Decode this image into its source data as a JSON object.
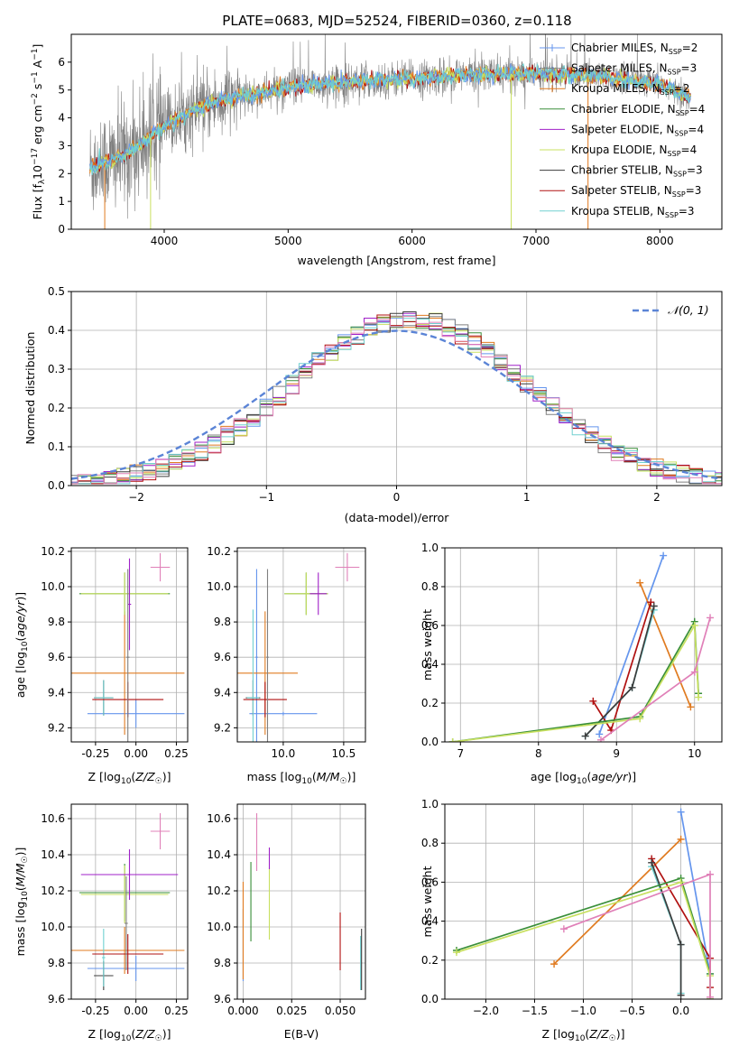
{
  "figure": {
    "title": "PLATE=0683, MJD=52524, FIBERID=0360, z=0.118"
  },
  "colors": {
    "Chabrier MILES": "#6495ed",
    "Salpeter MILES": "#808080",
    "Kroupa MILES": "#e07b20",
    "Chabrier ELODIE": "#3a8f3a",
    "Salpeter ELODIE": "#a020c8",
    "Kroupa ELODIE": "#c8e060",
    "Chabrier STELIB": "#3c3c3c",
    "Salpeter STELIB": "#b01010",
    "Kroupa STELIB": "#70d0d0",
    "extra": "#e080b8"
  },
  "chart_data": [
    {
      "id": "spectrum",
      "type": "line",
      "xlabel": "wavelength [Angstrom, rest frame]",
      "ylabel": "Flux [f_λ 10^-17 erg cm^-2 s^-1 A^-1]",
      "xlim": [
        3250,
        8500
      ],
      "ylim": [
        0,
        7
      ],
      "xticks": [
        4000,
        5000,
        6000,
        7000,
        8000
      ],
      "yticks": [
        0,
        1,
        2,
        3,
        4,
        5,
        6
      ],
      "grid": false,
      "legend_position": "right",
      "legend": [
        {
          "model": "Chabrier MILES",
          "nssp": "2"
        },
        {
          "model": "Salpeter MILES",
          "nssp": "3"
        },
        {
          "model": "Kroupa MILES",
          "nssp": "2"
        },
        {
          "model": "Chabrier ELODIE",
          "nssp": "4"
        },
        {
          "model": "Salpeter ELODIE",
          "nssp": "4"
        },
        {
          "model": "Kroupa ELODIE",
          "nssp": "4"
        },
        {
          "model": "Chabrier STELIB",
          "nssp": "3"
        },
        {
          "model": "Salpeter STELIB",
          "nssp": "3"
        },
        {
          "model": "Kroupa STELIB",
          "nssp": "3"
        }
      ],
      "continuum": {
        "x": [
          3400,
          3600,
          3800,
          4000,
          4200,
          4500,
          4800,
          5000,
          5500,
          6000,
          6500,
          7000,
          7500,
          8000,
          8250
        ],
        "y": [
          2.2,
          2.5,
          3.0,
          3.7,
          4.2,
          4.7,
          4.9,
          5.1,
          5.3,
          5.4,
          5.55,
          5.6,
          5.5,
          5.2,
          4.7
        ]
      }
    },
    {
      "id": "residuals",
      "type": "line",
      "xlabel": "(data-model)/error",
      "ylabel": "Normed distribution",
      "xlim": [
        -2.5,
        2.5
      ],
      "ylim": [
        0,
        0.5
      ],
      "xticks": [
        -2,
        -1,
        0,
        1,
        2
      ],
      "yticks": [
        0.0,
        0.1,
        0.2,
        0.3,
        0.4,
        0.5
      ],
      "grid": true,
      "legend_position": "top-right",
      "normal_label": "𝒩(0, 1)",
      "normal_color": "#5b84d6"
    },
    {
      "id": "age-vs-Z",
      "type": "scatter",
      "xlabel": "Z [log10(Z/Z☉)]",
      "ylabel": "age [log10(age/yr)]",
      "xlim": [
        -0.4,
        0.32
      ],
      "ylim": [
        9.12,
        10.22
      ],
      "xticks": [
        -0.25,
        0.0,
        0.25
      ],
      "yticks": [
        9.2,
        9.4,
        9.6,
        9.8,
        10.0,
        10.2
      ],
      "grid": true,
      "points": [
        {
          "model": "Chabrier MILES",
          "x": 0.0,
          "y": 9.28,
          "xerr": 0.3,
          "yerr": 0.08
        },
        {
          "model": "Kroupa MILES",
          "x": -0.07,
          "y": 9.51,
          "xerr": 0.37,
          "yerr": 0.35
        },
        {
          "model": "Chabrier STELIB",
          "x": -0.2,
          "y": 9.37,
          "xerr": 0.06,
          "yerr": 0.1
        },
        {
          "model": "Kroupa STELIB",
          "x": -0.2,
          "y": 9.37,
          "xerr": 0.06,
          "yerr": 0.1
        },
        {
          "model": "Salpeter STELIB",
          "x": -0.05,
          "y": 9.36,
          "xerr": 0.22,
          "yerr": 0.1
        },
        {
          "model": "Chabrier ELODIE",
          "x": -0.07,
          "y": 9.96,
          "xerr": 0.28,
          "yerr": 0.12
        },
        {
          "model": "Kroupa ELODIE",
          "x": -0.07,
          "y": 9.96,
          "xerr": 0.27,
          "yerr": 0.12
        },
        {
          "model": "Salpeter ELODIE",
          "x": -0.04,
          "y": 9.9,
          "xerr": 0.01,
          "yerr": 0.26
        },
        {
          "model": "Salpeter MILES",
          "x": -0.05,
          "y": 9.6,
          "xerr": 0.01,
          "yerr": 0.5
        },
        {
          "model": "extra",
          "x": 0.15,
          "y": 10.11,
          "xerr": 0.06,
          "yerr": 0.08
        }
      ]
    },
    {
      "id": "age-vs-mass",
      "type": "scatter",
      "xlabel": "mass [log10(M/M☉)]",
      "ylabel": "",
      "xlim": [
        9.62,
        10.68
      ],
      "ylim": [
        9.12,
        10.22
      ],
      "xticks": [
        10.0,
        10.5
      ],
      "yticks": [
        9.2,
        9.4,
        9.6,
        9.8,
        10.0,
        10.2
      ],
      "grid": true,
      "points": [
        {
          "model": "Chabrier MILES",
          "x": 9.78,
          "y": 9.6,
          "xerr": 0.01,
          "yerr": 0.5
        },
        {
          "model": "Chabrier MILES",
          "x": 10.0,
          "y": 9.28,
          "xerr": 0.28,
          "yerr": 0.01
        },
        {
          "model": "Kroupa MILES",
          "x": 9.85,
          "y": 9.51,
          "xerr": 0.27,
          "yerr": 0.35
        },
        {
          "model": "Chabrier STELIB",
          "x": 9.75,
          "y": 9.37,
          "xerr": 0.06,
          "yerr": 0.1
        },
        {
          "model": "Kroupa STELIB",
          "x": 9.75,
          "y": 9.37,
          "xerr": 0.05,
          "yerr": 0.5
        },
        {
          "model": "Salpeter STELIB",
          "x": 9.85,
          "y": 9.36,
          "xerr": 0.18,
          "yerr": 0.1
        },
        {
          "model": "Chabrier ELODIE",
          "x": 10.19,
          "y": 9.96,
          "xerr": 0.18,
          "yerr": 0.12
        },
        {
          "model": "Kroupa ELODIE",
          "x": 10.19,
          "y": 9.96,
          "xerr": 0.18,
          "yerr": 0.12
        },
        {
          "model": "Salpeter ELODIE",
          "x": 10.29,
          "y": 9.96,
          "xerr": 0.07,
          "yerr": 0.12
        },
        {
          "model": "Salpeter MILES",
          "x": 9.87,
          "y": 9.6,
          "xerr": 0.01,
          "yerr": 0.5
        },
        {
          "model": "extra",
          "x": 10.53,
          "y": 10.11,
          "xerr": 0.1,
          "yerr": 0.08
        }
      ]
    },
    {
      "id": "mass-weight-vs-age",
      "type": "line",
      "xlabel": "age [log10(age/yr)]",
      "ylabel": "mass weight",
      "xlim": [
        6.8,
        10.35
      ],
      "ylim": [
        0,
        1.0
      ],
      "xticks": [
        7,
        8,
        9,
        10
      ],
      "yticks": [
        0.0,
        0.2,
        0.4,
        0.6,
        0.8,
        1.0
      ],
      "grid": true,
      "series": [
        {
          "model": "Chabrier MILES",
          "x": [
            8.78,
            9.6
          ],
          "y": [
            0.04,
            0.96
          ]
        },
        {
          "model": "Kroupa MILES",
          "x": [
            9.3,
            9.95
          ],
          "y": [
            0.82,
            0.18
          ]
        },
        {
          "model": "Salpeter STELIB",
          "x": [
            8.7,
            8.93,
            9.44
          ],
          "y": [
            0.21,
            0.06,
            0.72
          ]
        },
        {
          "model": "Kroupa STELIB",
          "x": [
            8.6,
            9.2,
            9.48
          ],
          "y": [
            0.03,
            0.28,
            0.68
          ]
        },
        {
          "model": "Chabrier STELIB",
          "x": [
            8.6,
            9.2,
            9.48
          ],
          "y": [
            0.03,
            0.28,
            0.7
          ]
        },
        {
          "model": "Chabrier ELODIE",
          "x": [
            6.9,
            9.3,
            10.0,
            10.05
          ],
          "y": [
            0.0,
            0.13,
            0.62,
            0.25
          ]
        },
        {
          "model": "Kroupa ELODIE",
          "x": [
            6.9,
            9.3,
            10.0,
            10.05
          ],
          "y": [
            0.0,
            0.12,
            0.6,
            0.23
          ]
        },
        {
          "model": "extra",
          "x": [
            8.8,
            10.0,
            10.2
          ],
          "y": [
            0.01,
            0.36,
            0.64
          ]
        }
      ]
    },
    {
      "id": "mass-vs-Z",
      "type": "scatter",
      "xlabel": "Z [log10(Z/Z☉)]",
      "ylabel": "mass [log10(M/M☉)]",
      "xlim": [
        -0.4,
        0.32
      ],
      "ylim": [
        9.6,
        10.68
      ],
      "xticks": [
        -0.25,
        0.0,
        0.25
      ],
      "yticks": [
        9.6,
        9.8,
        10.0,
        10.2,
        10.4,
        10.6
      ],
      "grid": true,
      "points": [
        {
          "model": "Chabrier MILES",
          "x": 0.0,
          "y": 9.77,
          "xerr": 0.3,
          "yerr": 0.07
        },
        {
          "model": "Kroupa MILES",
          "x": -0.07,
          "y": 9.87,
          "xerr": 0.37,
          "yerr": 0.13
        },
        {
          "model": "Chabrier STELIB",
          "x": -0.2,
          "y": 9.73,
          "xerr": 0.06,
          "yerr": 0.08
        },
        {
          "model": "Kroupa STELIB",
          "x": -0.2,
          "y": 9.83,
          "xerr": 0.01,
          "yerr": 0.16
        },
        {
          "model": "Salpeter STELIB",
          "x": -0.05,
          "y": 9.85,
          "xerr": 0.22,
          "yerr": 0.11
        },
        {
          "model": "Chabrier ELODIE",
          "x": -0.07,
          "y": 10.19,
          "xerr": 0.28,
          "yerr": 0.16
        },
        {
          "model": "Kroupa ELODIE",
          "x": -0.07,
          "y": 10.18,
          "xerr": 0.27,
          "yerr": 0.16
        },
        {
          "model": "Salpeter ELODIE",
          "x": -0.04,
          "y": 10.29,
          "xerr": 0.3,
          "yerr": 0.14
        },
        {
          "model": "Salpeter MILES",
          "x": -0.06,
          "y": 10.02,
          "xerr": 0.01,
          "yerr": 0.26
        },
        {
          "model": "extra",
          "x": 0.15,
          "y": 10.53,
          "xerr": 0.06,
          "yerr": 0.1
        }
      ]
    },
    {
      "id": "mass-vs-ebv",
      "type": "scatter",
      "xlabel": "E(B-V)",
      "ylabel": "",
      "xlim": [
        -0.003,
        0.063
      ],
      "ylim": [
        9.6,
        10.68
      ],
      "xticks": [
        0.0,
        0.025,
        0.05
      ],
      "yticks": [
        9.6,
        9.8,
        10.0,
        10.2,
        10.4,
        10.6
      ],
      "grid": true,
      "points": [
        {
          "model": "Chabrier MILES",
          "x": 0.0,
          "y": 9.9,
          "xerr": 0.0,
          "yerr": 0.2
        },
        {
          "model": "Kroupa MILES",
          "x": 0.0,
          "y": 9.98,
          "xerr": 0.0,
          "yerr": 0.27
        },
        {
          "model": "Chabrier ELODIE",
          "x": 0.004,
          "y": 10.14,
          "xerr": 0.0,
          "yerr": 0.22
        },
        {
          "model": "extra",
          "x": 0.007,
          "y": 10.47,
          "xerr": 0.0,
          "yerr": 0.16
        },
        {
          "model": "Kroupa ELODIE",
          "x": 0.0135,
          "y": 10.13,
          "xerr": 0.0,
          "yerr": 0.2
        },
        {
          "model": "Salpeter ELODIE",
          "x": 0.0135,
          "y": 10.38,
          "xerr": 0.0,
          "yerr": 0.06
        },
        {
          "model": "Salpeter STELIB",
          "x": 0.05,
          "y": 9.92,
          "xerr": 0.0,
          "yerr": 0.16
        },
        {
          "model": "Kroupa STELIB",
          "x": 0.0605,
          "y": 9.8,
          "xerr": 0.0,
          "yerr": 0.15
        },
        {
          "model": "Chabrier STELIB",
          "x": 0.061,
          "y": 9.82,
          "xerr": 0.0,
          "yerr": 0.17
        }
      ]
    },
    {
      "id": "mass-weight-vs-Z",
      "type": "line",
      "xlabel": "Z [log10(Z/Z☉)]",
      "ylabel": "mass weight",
      "xlim": [
        -2.42,
        0.42
      ],
      "ylim": [
        0,
        1.0
      ],
      "xticks": [
        -2.0,
        -1.5,
        -1.0,
        -0.5,
        0.0
      ],
      "yticks": [
        0.0,
        0.2,
        0.4,
        0.6,
        0.8,
        1.0
      ],
      "grid": true,
      "series": [
        {
          "model": "Chabrier MILES",
          "x": [
            0.0,
            0.3
          ],
          "y": [
            0.96,
            0.13
          ]
        },
        {
          "model": "Kroupa MILES",
          "x": [
            -1.3,
            0.0
          ],
          "y": [
            0.18,
            0.82
          ]
        },
        {
          "model": "Salpeter STELIB",
          "x": [
            -0.3,
            0.3,
            0.3
          ],
          "y": [
            0.72,
            0.21,
            0.06
          ]
        },
        {
          "model": "Kroupa STELIB",
          "x": [
            -0.3,
            0.0,
            0.0
          ],
          "y": [
            0.68,
            0.28,
            0.03
          ]
        },
        {
          "model": "Chabrier STELIB",
          "x": [
            -0.3,
            0.0,
            0.0
          ],
          "y": [
            0.7,
            0.28,
            0.02
          ]
        },
        {
          "model": "Chabrier ELODIE",
          "x": [
            -2.3,
            0.0,
            0.3,
            0.3
          ],
          "y": [
            0.25,
            0.62,
            0.13,
            0.0
          ]
        },
        {
          "model": "Kroupa ELODIE",
          "x": [
            -2.3,
            0.0,
            0.3,
            0.3
          ],
          "y": [
            0.24,
            0.6,
            0.12,
            0.0
          ]
        },
        {
          "model": "extra",
          "x": [
            -1.2,
            0.3,
            0.3
          ],
          "y": [
            0.36,
            0.64,
            0.01
          ]
        }
      ]
    }
  ]
}
